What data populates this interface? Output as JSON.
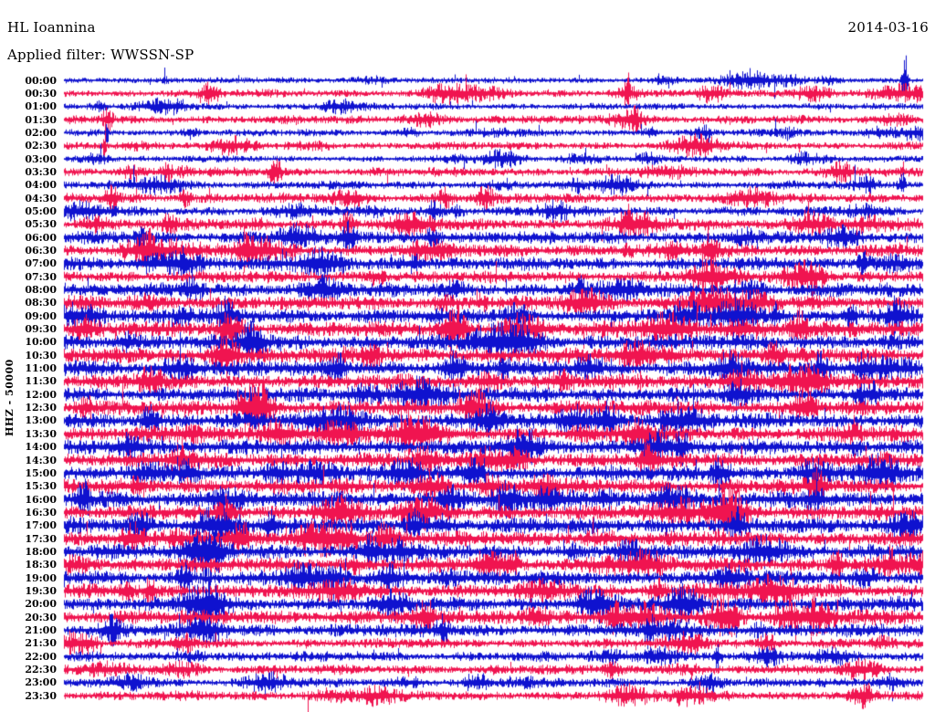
{
  "header": {
    "station": "HL Ioannina",
    "date": "2014-03-16",
    "filter_label": "Applied filter: WWSSN-SP"
  },
  "y_axis_label": "HHZ - 50000",
  "colors": {
    "trace_blue": "#0f12cf",
    "trace_red": "#f01450",
    "text": "#000000",
    "background": "#ffffff"
  },
  "chart_data": {
    "type": "line",
    "title": "HL Ioannina",
    "subtitle": "Applied filter: WWSSN-SP",
    "date": "2014-03-16",
    "channel_scale_label": "HHZ - 50000",
    "minutes_per_row": 30,
    "legend_position": "none",
    "grid": false,
    "row_labels": [
      "00:00",
      "00:30",
      "01:00",
      "01:30",
      "02:00",
      "02:30",
      "03:00",
      "03:30",
      "04:00",
      "04:30",
      "05:00",
      "05:30",
      "06:00",
      "06:30",
      "07:00",
      "07:30",
      "08:00",
      "08:30",
      "09:00",
      "09:30",
      "10:00",
      "10:30",
      "11:00",
      "11:30",
      "12:00",
      "12:30",
      "13:00",
      "13:30",
      "14:00",
      "14:30",
      "15:00",
      "15:30",
      "16:00",
      "16:30",
      "17:00",
      "17:30",
      "18:00",
      "18:30",
      "19:00",
      "19:30",
      "20:00",
      "20:30",
      "21:00",
      "21:30",
      "22:00",
      "22:30",
      "23:00",
      "23:30"
    ],
    "row_color_pattern": [
      "blue",
      "red"
    ],
    "row_amplitudes": [
      2.8,
      3.6,
      3.0,
      3.8,
      3.2,
      3.6,
      3.0,
      4.2,
      3.8,
      4.6,
      4.4,
      5.2,
      5.8,
      5.8,
      5.8,
      5.4,
      6.2,
      6.4,
      6.8,
      7.0,
      7.0,
      7.0,
      7.0,
      6.8,
      6.8,
      6.8,
      6.8,
      6.8,
      6.8,
      7.0,
      7.0,
      7.0,
      7.0,
      7.0,
      7.0,
      6.8,
      6.8,
      6.8,
      6.5,
      6.5,
      6.5,
      6.8,
      6.0,
      4.4,
      4.4,
      4.4,
      4.0,
      4.4
    ],
    "events": [
      {
        "row": 0,
        "t": 0.978,
        "amp": 30,
        "w": 2.5
      },
      {
        "row": 1,
        "t": 0.17,
        "amp": 10,
        "w": 8
      },
      {
        "row": 1,
        "t": 0.655,
        "amp": 20,
        "w": 2
      },
      {
        "row": 3,
        "t": 0.05,
        "amp": 8,
        "w": 6
      },
      {
        "row": 4,
        "t": 0.05,
        "amp": 11,
        "w": 1.5
      },
      {
        "row": 5,
        "t": 0.047,
        "amp": 13,
        "w": 1.5
      },
      {
        "row": 7,
        "t": 0.12,
        "amp": 7,
        "w": 5
      },
      {
        "row": 7,
        "t": 0.245,
        "amp": 11,
        "w": 7
      },
      {
        "row": 8,
        "t": 0.975,
        "amp": 9,
        "w": 4
      },
      {
        "row": 9,
        "t": 0.055,
        "amp": 10,
        "w": 8
      },
      {
        "row": 9,
        "t": 0.49,
        "amp": 9,
        "w": 8
      },
      {
        "row": 11,
        "t": 0.33,
        "amp": 9,
        "w": 6
      },
      {
        "row": 12,
        "t": 0.09,
        "amp": 8,
        "w": 7
      },
      {
        "row": 12,
        "t": 0.33,
        "amp": 11,
        "w": 9
      },
      {
        "row": 13,
        "t": 0.1,
        "amp": 8,
        "w": 7
      },
      {
        "row": 13,
        "t": 0.21,
        "amp": 9,
        "w": 7
      },
      {
        "row": 13,
        "t": 0.75,
        "amp": 9,
        "w": 6
      },
      {
        "row": 14,
        "t": 0.93,
        "amp": 10,
        "w": 6
      },
      {
        "row": 16,
        "t": 0.15,
        "amp": 9,
        "w": 8
      },
      {
        "row": 16,
        "t": 0.6,
        "amp": 8,
        "w": 7
      },
      {
        "row": 18,
        "t": 0.19,
        "amp": 11,
        "w": 9
      },
      {
        "row": 18,
        "t": 0.83,
        "amp": 8,
        "w": 7
      },
      {
        "row": 19,
        "t": 0.19,
        "amp": 10,
        "w": 8
      },
      {
        "row": 19,
        "t": 0.455,
        "amp": 13,
        "w": 10
      },
      {
        "row": 21,
        "t": 0.185,
        "amp": 12,
        "w": 9
      },
      {
        "row": 22,
        "t": 0.88,
        "amp": 10,
        "w": 8
      },
      {
        "row": 23,
        "t": 0.875,
        "amp": 13,
        "w": 10
      },
      {
        "row": 26,
        "t": 0.1,
        "amp": 11,
        "w": 9
      },
      {
        "row": 28,
        "t": 0.72,
        "amp": 9,
        "w": 7
      },
      {
        "row": 30,
        "t": 0.475,
        "amp": 12,
        "w": 10
      },
      {
        "row": 33,
        "t": 0.19,
        "amp": 10,
        "w": 8
      },
      {
        "row": 35,
        "t": 0.205,
        "amp": 12,
        "w": 9
      },
      {
        "row": 37,
        "t": 0.52,
        "amp": 9,
        "w": 7
      },
      {
        "row": 37,
        "t": 0.9,
        "amp": 11,
        "w": 9
      },
      {
        "row": 39,
        "t": 0.1,
        "amp": 9,
        "w": 7
      },
      {
        "row": 40,
        "t": 0.17,
        "amp": 11,
        "w": 9
      },
      {
        "row": 41,
        "t": 0.42,
        "amp": 11,
        "w": 9
      },
      {
        "row": 42,
        "t": 0.44,
        "amp": 9,
        "w": 7
      },
      {
        "row": 42,
        "t": 0.68,
        "amp": 12,
        "w": 5
      },
      {
        "row": 44,
        "t": 0.76,
        "amp": 12,
        "w": 4
      },
      {
        "row": 47,
        "t": 0.93,
        "amp": 9,
        "w": 10
      }
    ]
  }
}
